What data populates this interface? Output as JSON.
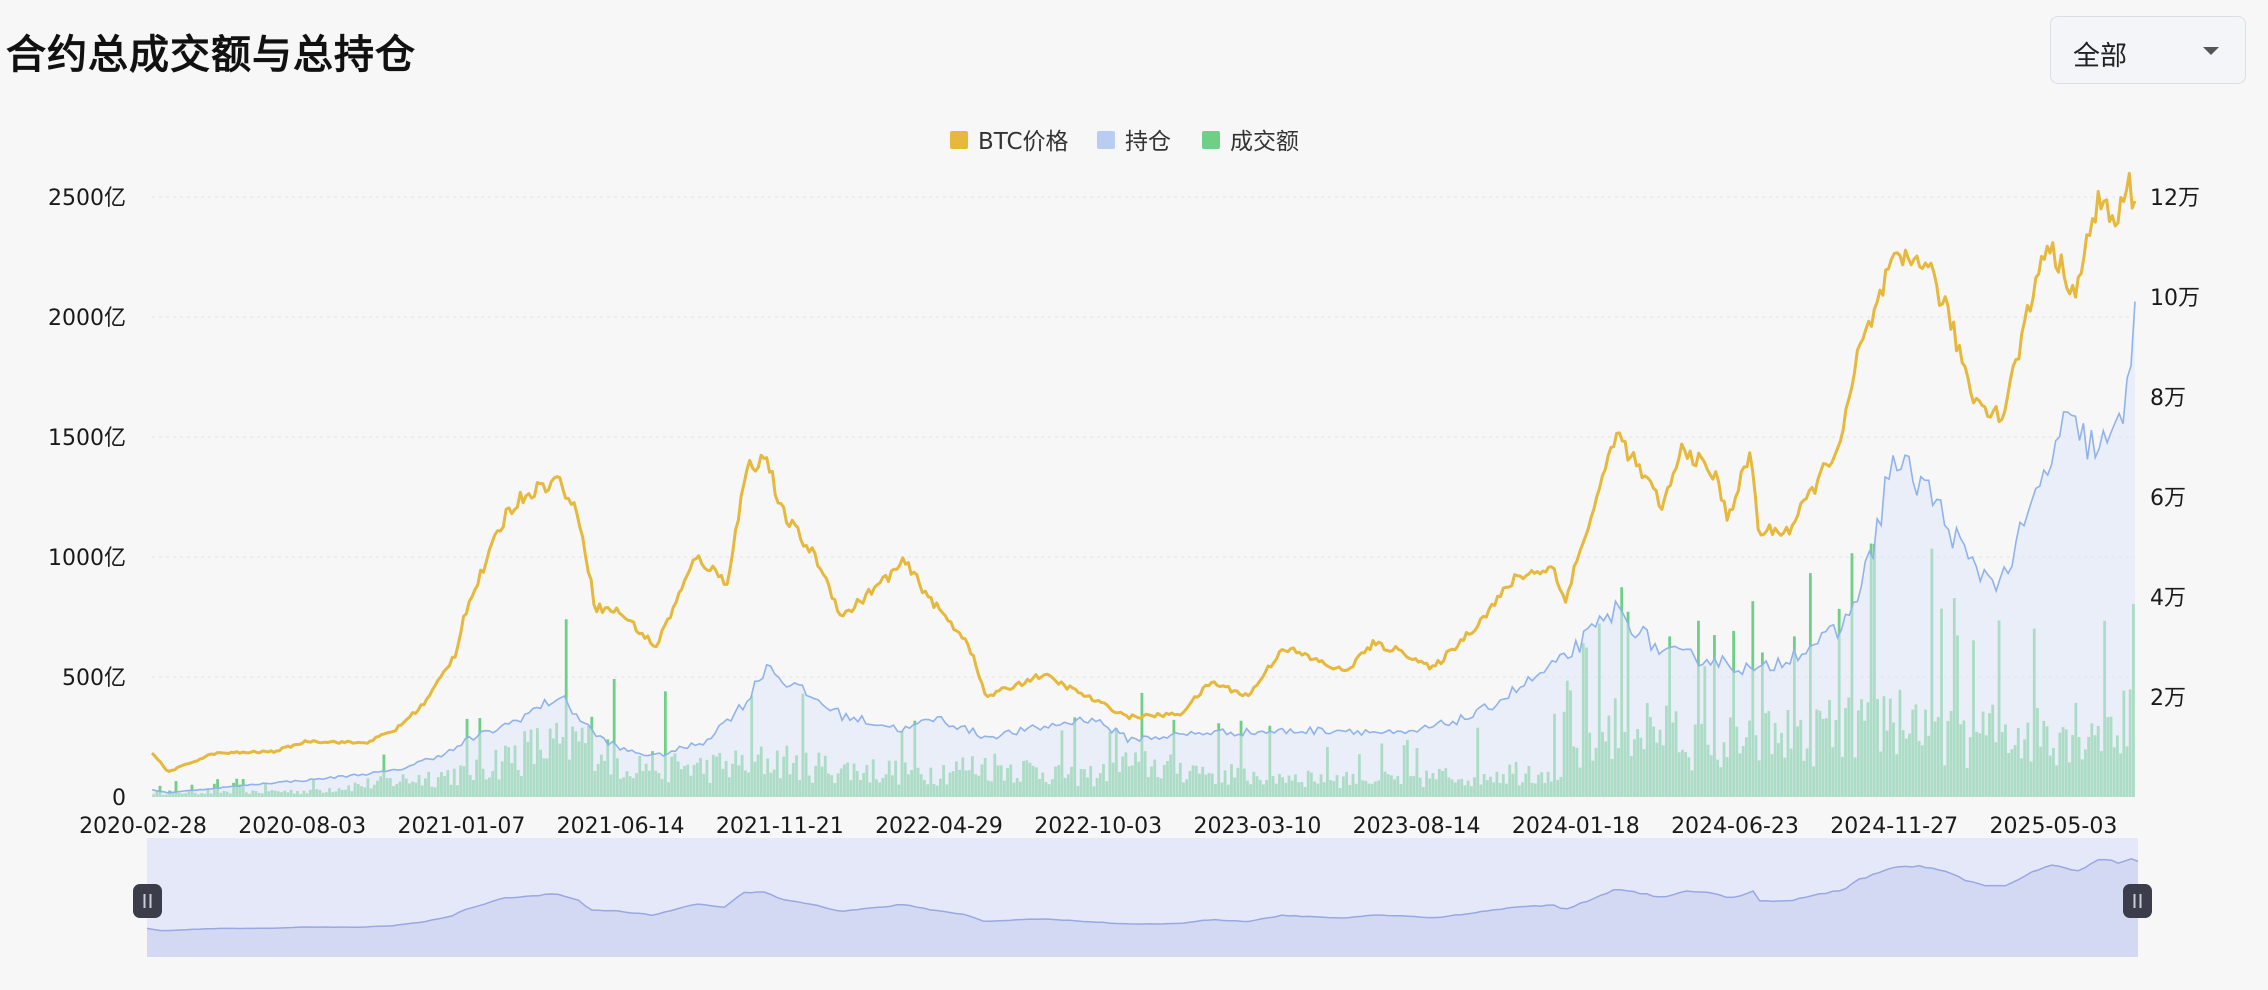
{
  "page": {
    "title": "合约总成交额与总持仓",
    "range_select": {
      "value": "全部",
      "icon": "chevron-down-icon"
    }
  },
  "chart_data": {
    "type": "line",
    "title": "合约总成交额与总持仓",
    "legend": [
      {
        "name": "BTC价格",
        "color": "#e6b83b"
      },
      {
        "name": "持仓",
        "color": "#b9cdf3"
      },
      {
        "name": "成交额",
        "color": "#6fcf87"
      }
    ],
    "legend_position": "top-center",
    "x_tick_labels": [
      "2020-02-28",
      "2020-08-03",
      "2021-01-07",
      "2021-06-14",
      "2021-11-21",
      "2022-04-29",
      "2022-10-03",
      "2023-03-10",
      "2023-08-14",
      "2024-01-18",
      "2024-06-23",
      "2024-11-27",
      "2025-05-03"
    ],
    "x_range": [
      "2020-02-28",
      "2025-08-20"
    ],
    "y_left": {
      "label": "",
      "ticks": [
        "0",
        "500亿",
        "1000亿",
        "1500亿",
        "2000亿",
        "2500亿"
      ],
      "range": [
        0,
        2500
      ],
      "unit": "亿"
    },
    "y_right": {
      "label": "",
      "ticks": [
        "2万",
        "4万",
        "6万",
        "8万",
        "10万",
        "12万"
      ],
      "range": [
        0,
        120000
      ],
      "unit": "USD"
    },
    "grid": "horizontal-dashed",
    "series": [
      {
        "name": "BTC价格",
        "axis": "right",
        "style": "line",
        "color": "#e6b83b",
        "x": [
          "2020-02-28",
          "2020-03-15",
          "2020-04-30",
          "2020-06-30",
          "2020-08-03",
          "2020-09-30",
          "2020-10-31",
          "2020-11-30",
          "2020-12-31",
          "2021-01-07",
          "2021-02-20",
          "2021-03-13",
          "2021-04-14",
          "2021-05-05",
          "2021-05-20",
          "2021-06-14",
          "2021-07-20",
          "2021-08-30",
          "2021-09-30",
          "2021-10-20",
          "2021-11-10",
          "2021-11-21",
          "2021-12-31",
          "2022-01-24",
          "2022-03-28",
          "2022-04-29",
          "2022-05-31",
          "2022-06-18",
          "2022-08-14",
          "2022-10-03",
          "2022-11-09",
          "2022-12-31",
          "2023-01-31",
          "2023-03-10",
          "2023-04-14",
          "2023-06-15",
          "2023-07-13",
          "2023-08-14",
          "2023-09-11",
          "2023-10-24",
          "2023-12-05",
          "2024-01-11",
          "2024-01-18",
          "2024-01-23",
          "2024-02-28",
          "2024-03-14",
          "2024-05-01",
          "2024-05-21",
          "2024-06-23",
          "2024-07-05",
          "2024-07-29",
          "2024-08-05",
          "2024-09-06",
          "2024-10-29",
          "2024-11-13",
          "2024-11-27",
          "2024-12-17",
          "2025-01-20",
          "2025-02-15",
          "2025-03-10",
          "2025-04-08",
          "2025-05-03",
          "2025-05-22",
          "2025-06-22",
          "2025-07-14",
          "2025-08-01",
          "2025-08-14",
          "2025-08-20"
        ],
        "y": [
          9000,
          5000,
          8700,
          9100,
          11200,
          10800,
          13500,
          19000,
          29000,
          36000,
          57000,
          61000,
          63500,
          55000,
          38000,
          37000,
          30000,
          48000,
          43000,
          66000,
          68000,
          58000,
          47000,
          36000,
          47000,
          38000,
          31000,
          20000,
          24500,
          19600,
          16000,
          16600,
          23000,
          20200,
          30000,
          25000,
          30600,
          29000,
          25500,
          34000,
          44000,
          46000,
          41500,
          39500,
          62000,
          73000,
          58000,
          70000,
          64000,
          56000,
          69000,
          53000,
          53500,
          72000,
          88000,
          95000,
          106000,
          108000,
          95000,
          80000,
          76000,
          96000,
          111000,
          101000,
          120000,
          114000,
          123000,
          117000
        ]
      },
      {
        "name": "持仓",
        "axis": "left",
        "style": "area",
        "color": "#b9cdf3",
        "x": [
          "2020-02-28",
          "2020-03-15",
          "2020-06-30",
          "2020-08-03",
          "2020-10-31",
          "2020-12-31",
          "2021-01-07",
          "2021-02-20",
          "2021-04-14",
          "2021-05-20",
          "2021-06-14",
          "2021-07-20",
          "2021-09-07",
          "2021-10-20",
          "2021-11-10",
          "2021-11-21",
          "2022-01-24",
          "2022-03-28",
          "2022-04-29",
          "2022-06-18",
          "2022-08-14",
          "2022-10-03",
          "2022-11-09",
          "2023-01-31",
          "2023-03-10",
          "2023-06-15",
          "2023-08-14",
          "2023-10-24",
          "2024-01-18",
          "2024-03-14",
          "2024-05-01",
          "2024-06-23",
          "2024-08-05",
          "2024-10-29",
          "2024-11-27",
          "2024-12-17",
          "2025-01-20",
          "2025-03-10",
          "2025-04-08",
          "2025-05-03",
          "2025-06-10",
          "2025-07-14",
          "2025-08-01",
          "2025-08-14",
          "2025-08-20"
        ],
        "y": [
          30,
          18,
          60,
          70,
          110,
          200,
          230,
          300,
          420,
          260,
          200,
          170,
          230,
          400,
          560,
          500,
          340,
          280,
          330,
          250,
          290,
          330,
          240,
          270,
          270,
          280,
          260,
          340,
          560,
          780,
          600,
          570,
          520,
          700,
          1000,
          1400,
          1300,
          950,
          900,
          1150,
          1550,
          1450,
          1500,
          1700,
          2130
        ]
      },
      {
        "name": "成交额",
        "axis": "left",
        "style": "bar",
        "color": "#6fcf87",
        "x": [
          "2020-02-28",
          "2020-08-03",
          "2021-01-07",
          "2021-03-13",
          "2021-05-20",
          "2021-06-14",
          "2021-09-07",
          "2021-11-21",
          "2022-01-24",
          "2022-04-29",
          "2022-06-18",
          "2022-10-03",
          "2022-11-09",
          "2023-03-10",
          "2023-08-14",
          "2024-01-18",
          "2024-03-14",
          "2024-06-23",
          "2024-08-05",
          "2024-11-27",
          "2024-12-17",
          "2025-03-10",
          "2025-05-03",
          "2025-07-14",
          "2025-08-20"
        ],
        "y": [
          50,
          60,
          250,
          480,
          600,
          350,
          300,
          380,
          280,
          260,
          330,
          220,
          350,
          230,
          180,
          300,
          800,
          550,
          600,
          780,
          850,
          650,
          700,
          750,
          800
        ]
      }
    ],
    "slider": {
      "range": [
        "2020-02-28",
        "2025-08-20"
      ]
    }
  }
}
